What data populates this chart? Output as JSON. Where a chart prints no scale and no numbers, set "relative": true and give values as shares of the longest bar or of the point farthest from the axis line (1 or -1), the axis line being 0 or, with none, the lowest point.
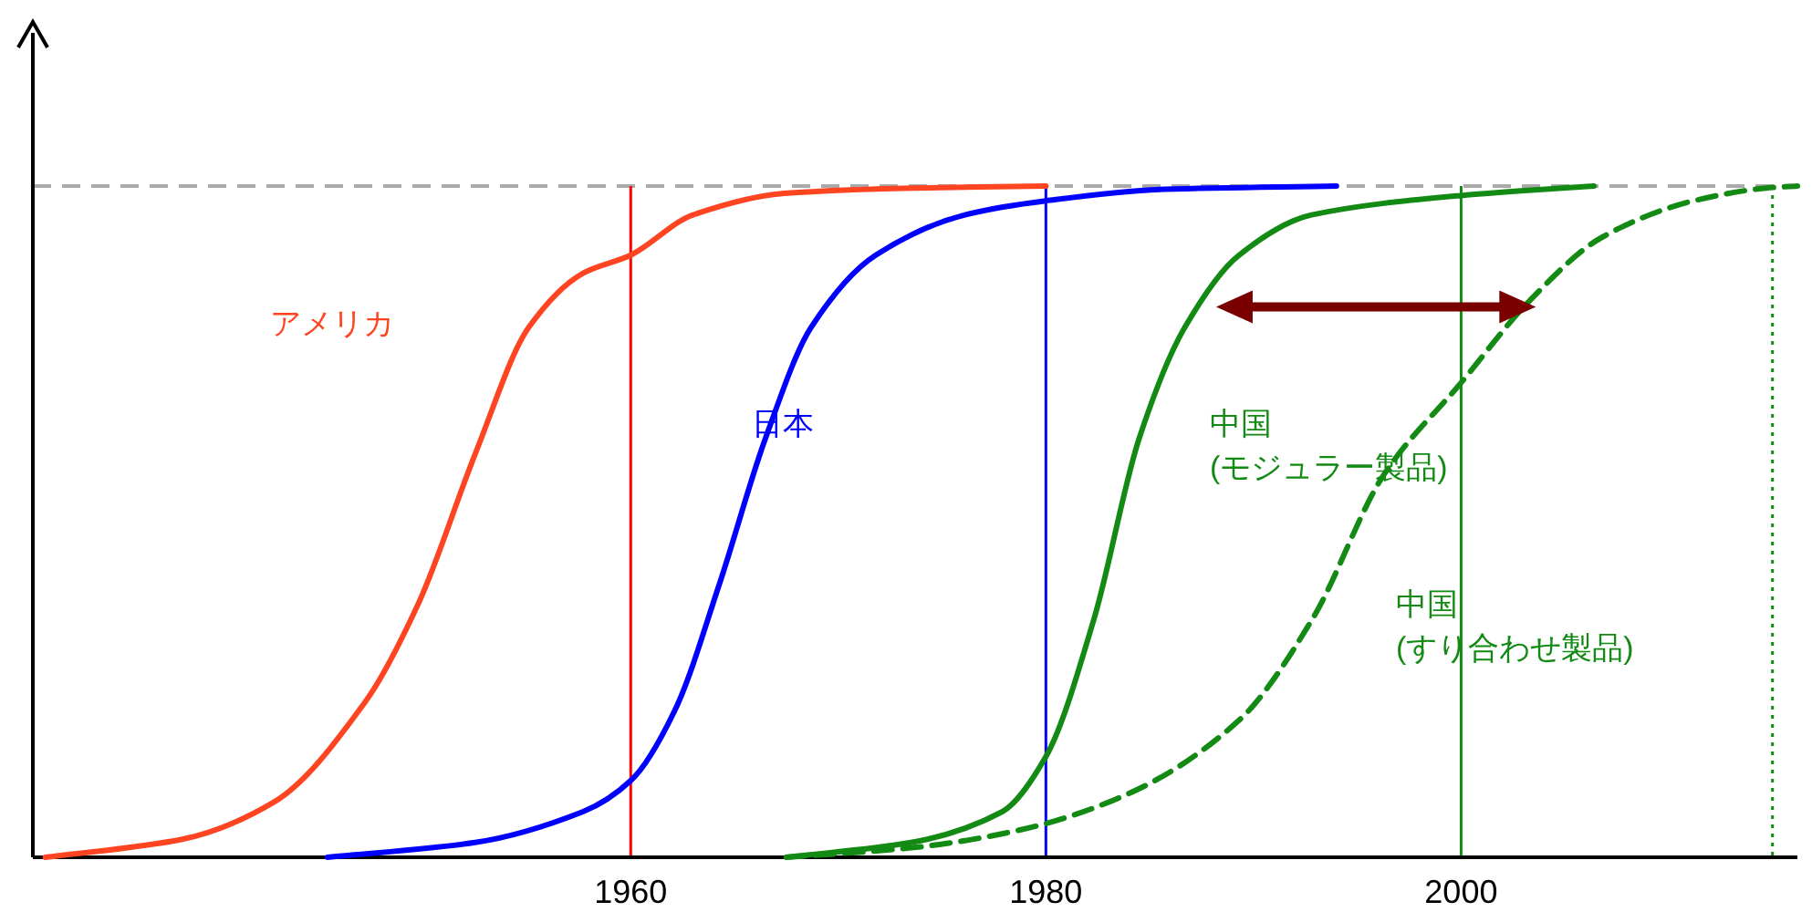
{
  "chart_data": {
    "type": "line",
    "relative": true,
    "xlim": [
      1931.2,
      2016.2
    ],
    "xticks": [
      1960,
      1980,
      2000
    ],
    "tick_labels": "x",
    "series": [
      {
        "color": "#ff4422",
        "line_style": "solid",
        "x": [
          1931.8,
          1938.4,
          1942.8,
          1947.2,
          1949.8,
          1952.5,
          1955.1,
          1957.7,
          1960,
          1963,
          1967.4,
          1973.5,
          1980
        ],
        "values": [
          0,
          0.027,
          0.082,
          0.231,
          0.38,
          0.6,
          0.79,
          0.87,
          0.897,
          0.957,
          0.989,
          0.997,
          1
        ]
      },
      {
        "color": "#0000ff",
        "line_style": "solid",
        "x": [
          1945.4,
          1952.5,
          1957.7,
          1960,
          1962.1,
          1964.3,
          1966.5,
          1968.7,
          1971.8,
          1976.1,
          1980,
          1985.7,
          1994
        ],
        "values": [
          0,
          0.022,
          0.068,
          0.114,
          0.217,
          0.41,
          0.625,
          0.79,
          0.897,
          0.957,
          0.978,
          0.995,
          1
        ]
      },
      {
        "color": "#138a13",
        "line_style": "solid",
        "x": [
          1967.5,
          1973.5,
          1977.9,
          1980,
          1982.3,
          1984.5,
          1986.7,
          1989.3,
          1992.8,
          2000,
          2006.4
        ],
        "values": [
          0,
          0.022,
          0.068,
          0.15,
          0.353,
          0.625,
          0.79,
          0.897,
          0.957,
          0.986,
          1
        ]
      },
      {
        "color": "#138a13",
        "line_style": "dashed",
        "x": [
          1967.5,
          1973.5,
          1978.8,
          1984,
          1989.3,
          1992.8,
          1996.3,
          2000,
          2003.3,
          2006.8,
          2011.2,
          2014.7,
          2016.2
        ],
        "values": [
          0,
          0.014,
          0.041,
          0.095,
          0.204,
          0.353,
          0.571,
          0.707,
          0.829,
          0.924,
          0.978,
          0.997,
          1
        ]
      }
    ],
    "ref_lines": [
      {
        "axis": "y",
        "value": 1,
        "color": "#aaaaaa",
        "line_style": "dashed"
      },
      {
        "axis": "x",
        "value": 1960,
        "color": "#ff0000",
        "line_style": "solid"
      },
      {
        "axis": "x",
        "value": 1980,
        "color": "#0000ff",
        "line_style": "solid"
      },
      {
        "axis": "x",
        "value": 2000,
        "color": "#138a13",
        "line_style": "solid"
      },
      {
        "axis": "x",
        "value": 2015,
        "color": "#138a13",
        "line_style": "dotted"
      }
    ],
    "annotations": [
      "アメリカ",
      "日本",
      "中国\n(モジュラー製品)",
      "中国\n(すり合わせ製品)"
    ]
  }
}
